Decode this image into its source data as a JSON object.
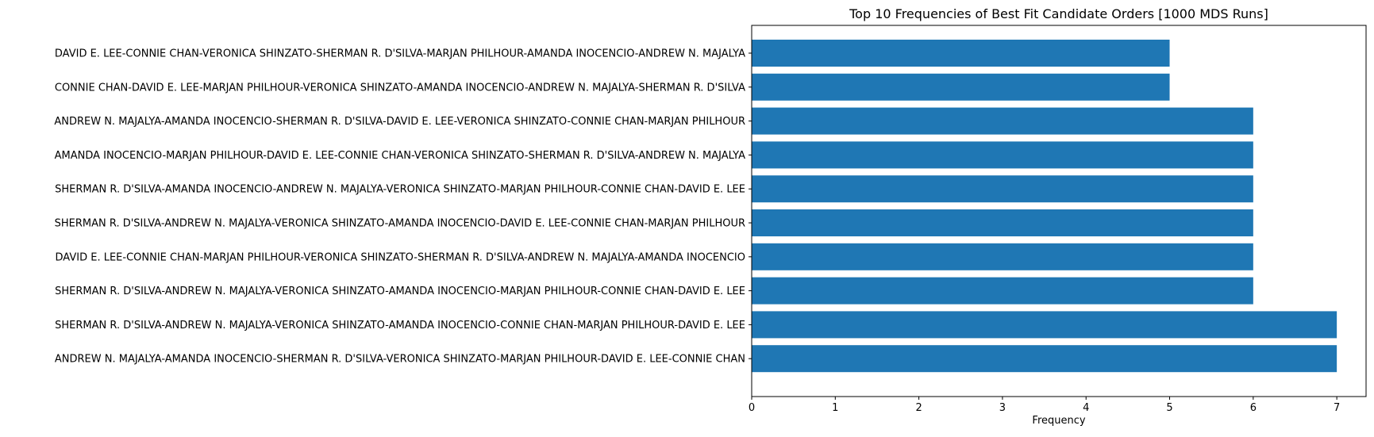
{
  "chart_data": {
    "type": "bar",
    "orientation": "horizontal",
    "title": "Top 10 Frequencies of Best Fit Candidate Orders [1000 MDS Runs]",
    "xlabel": "Frequency",
    "ylabel": "",
    "xlim": [
      0,
      7.35
    ],
    "xticks": [
      0,
      1,
      2,
      3,
      4,
      5,
      6,
      7
    ],
    "grid": false,
    "bar_color": "#1f77b4",
    "categories": [
      "DAVID E. LEE-CONNIE CHAN-VERONICA SHINZATO-SHERMAN R. D'SILVA-MARJAN PHILHOUR-AMANDA INOCENCIO-ANDREW N. MAJALYA",
      "CONNIE CHAN-DAVID E. LEE-MARJAN PHILHOUR-VERONICA SHINZATO-AMANDA INOCENCIO-ANDREW N. MAJALYA-SHERMAN R. D'SILVA",
      "ANDREW N. MAJALYA-AMANDA INOCENCIO-SHERMAN R. D'SILVA-DAVID E. LEE-VERONICA SHINZATO-CONNIE CHAN-MARJAN PHILHOUR",
      "AMANDA INOCENCIO-MARJAN PHILHOUR-DAVID E. LEE-CONNIE CHAN-VERONICA SHINZATO-SHERMAN R. D'SILVA-ANDREW N. MAJALYA",
      "SHERMAN R. D'SILVA-AMANDA INOCENCIO-ANDREW N. MAJALYA-VERONICA SHINZATO-MARJAN PHILHOUR-CONNIE CHAN-DAVID E. LEE",
      "SHERMAN R. D'SILVA-ANDREW N. MAJALYA-VERONICA SHINZATO-AMANDA INOCENCIO-DAVID E. LEE-CONNIE CHAN-MARJAN PHILHOUR",
      "DAVID E. LEE-CONNIE CHAN-MARJAN PHILHOUR-VERONICA SHINZATO-SHERMAN R. D'SILVA-ANDREW N. MAJALYA-AMANDA INOCENCIO",
      "SHERMAN R. D'SILVA-ANDREW N. MAJALYA-VERONICA SHINZATO-AMANDA INOCENCIO-MARJAN PHILHOUR-CONNIE CHAN-DAVID E. LEE",
      "SHERMAN R. D'SILVA-ANDREW N. MAJALYA-VERONICA SHINZATO-AMANDA INOCENCIO-CONNIE CHAN-MARJAN PHILHOUR-DAVID E. LEE",
      "ANDREW N. MAJALYA-AMANDA INOCENCIO-SHERMAN R. D'SILVA-VERONICA SHINZATO-MARJAN PHILHOUR-DAVID E. LEE-CONNIE CHAN"
    ],
    "values": [
      5,
      5,
      6,
      6,
      6,
      6,
      6,
      6,
      7,
      7
    ]
  }
}
